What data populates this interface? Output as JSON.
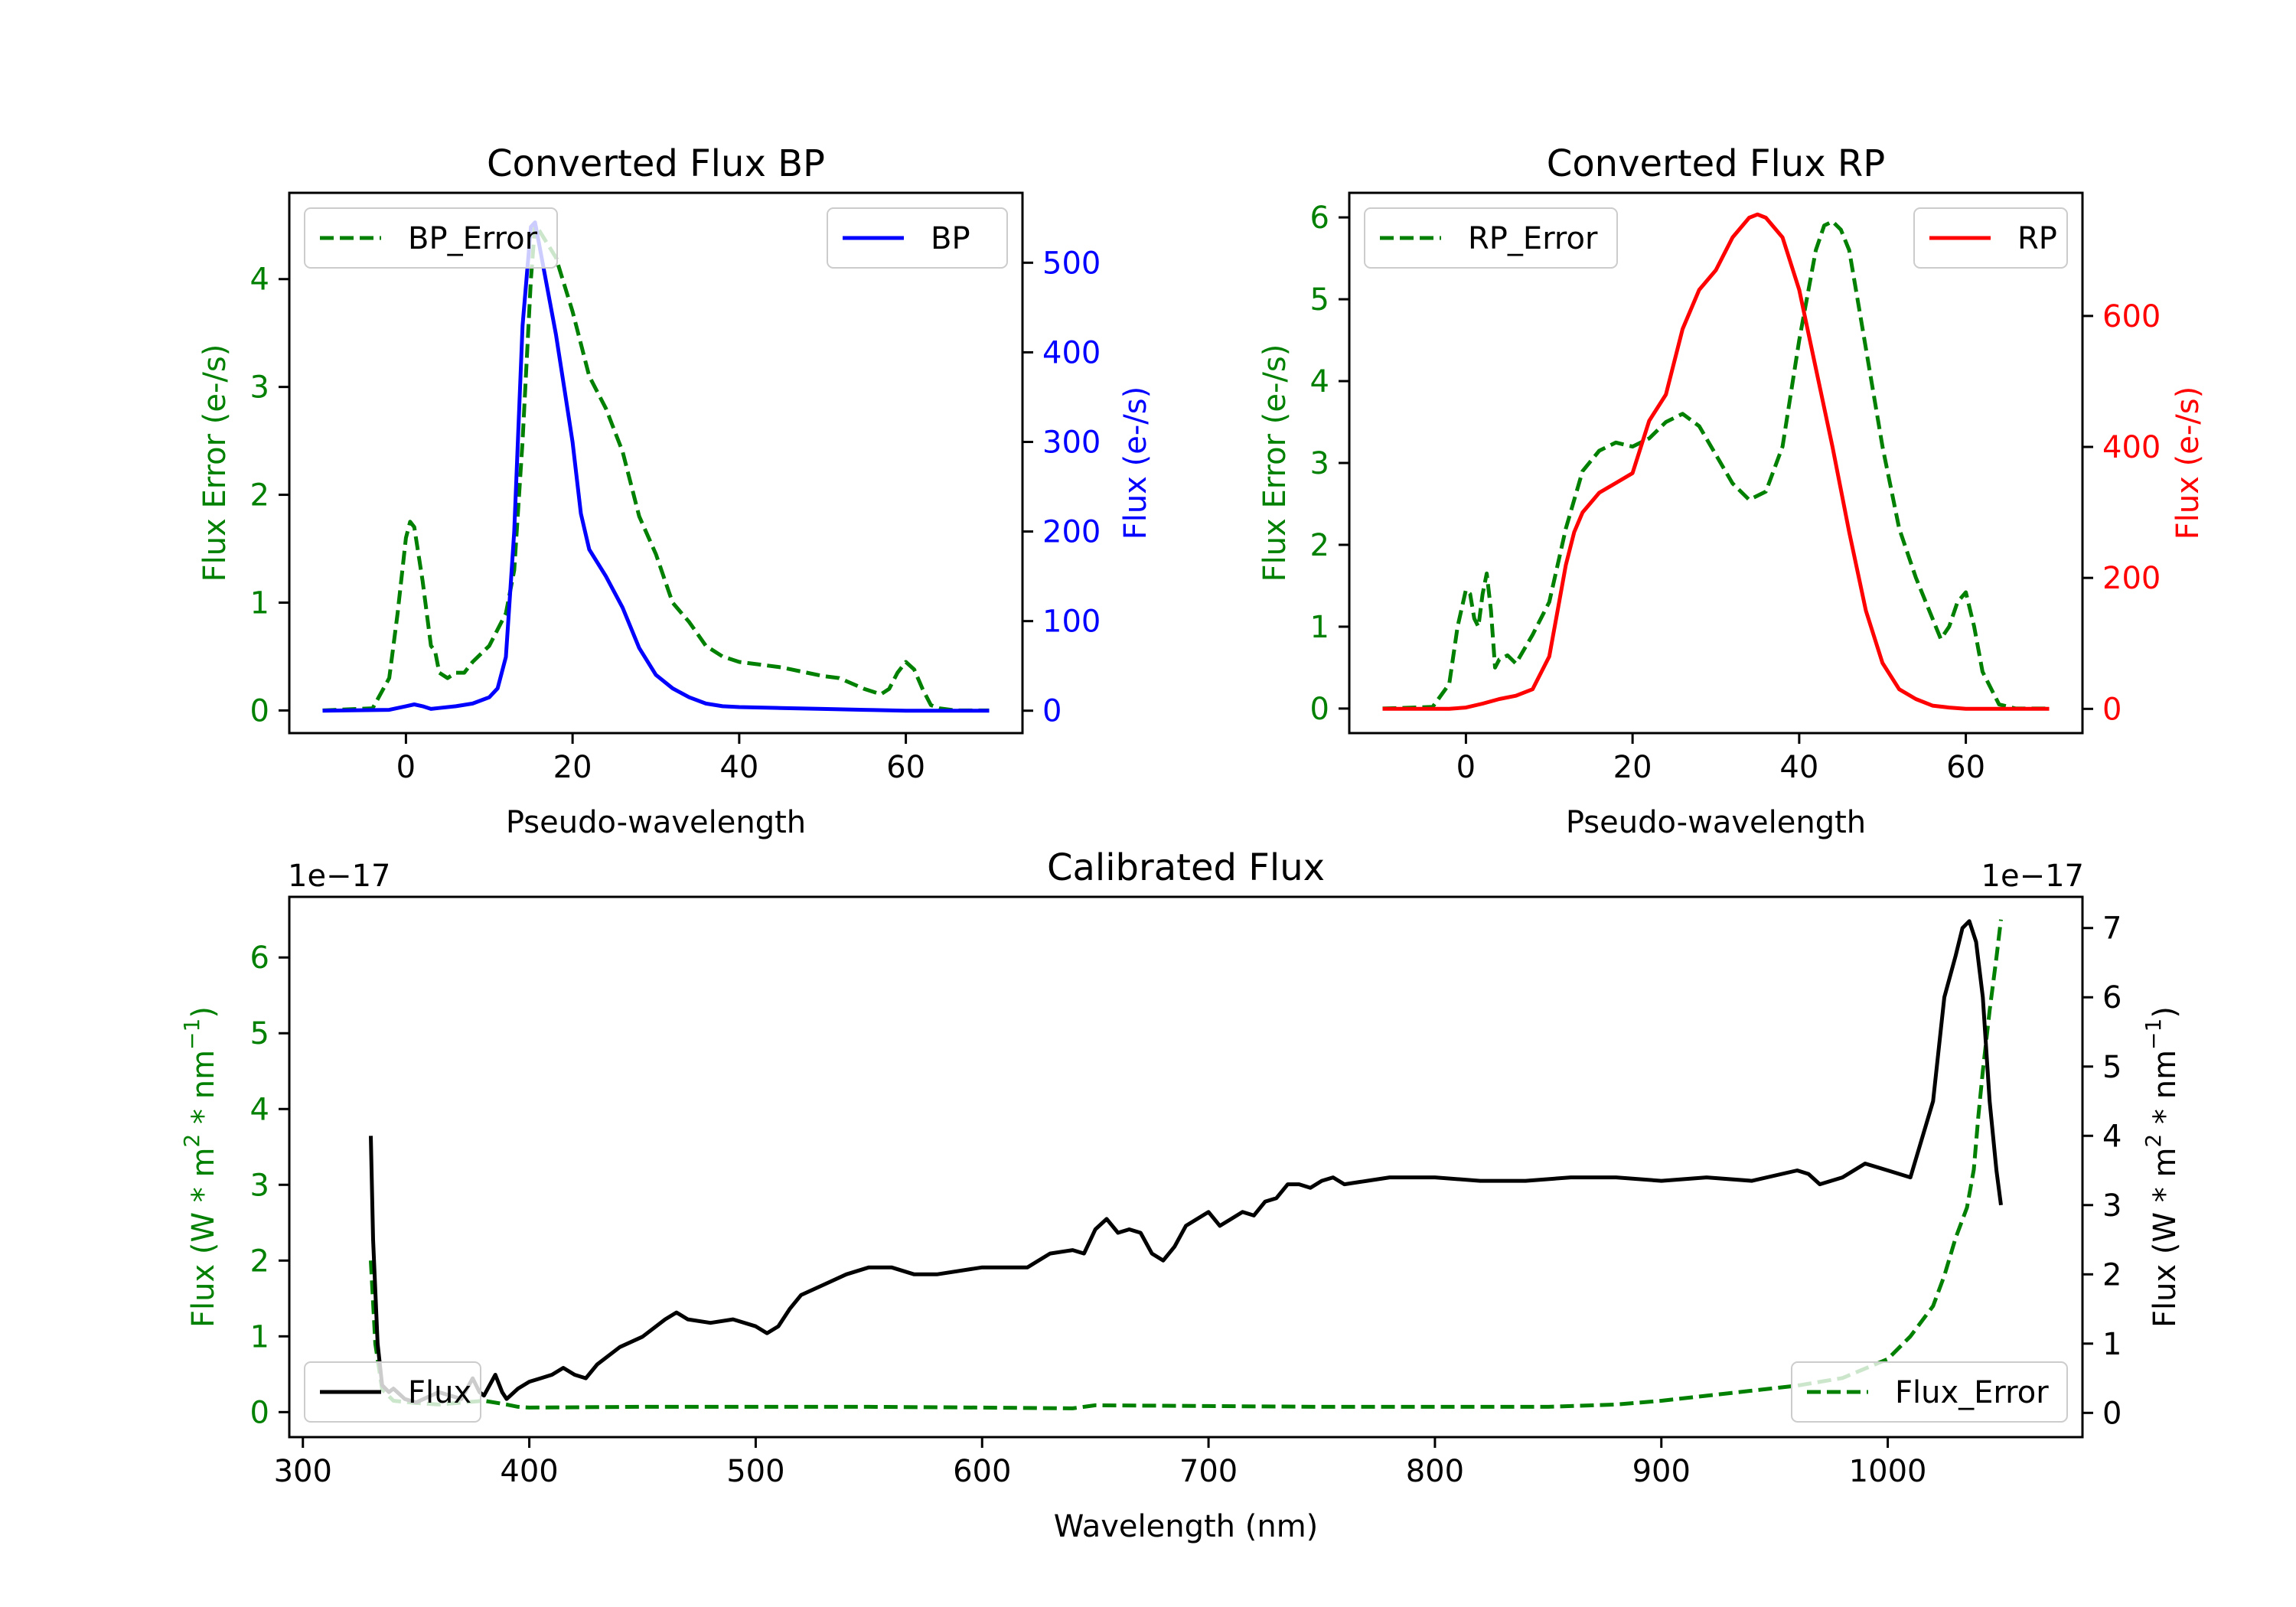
{
  "colors": {
    "green": "#008000",
    "blue": "#0000ff",
    "red": "#ff0000",
    "black": "#000000",
    "axis": "#000000",
    "background": "#ffffff"
  },
  "chart_data": [
    {
      "id": "bp",
      "type": "line",
      "title": "Converted Flux BP",
      "xlabel": "Pseudo-wavelength",
      "xlim": [
        -14,
        74
      ],
      "xticks": [
        0,
        20,
        40,
        60
      ],
      "left_axis": {
        "label": "Flux Error (e-/s)",
        "color": "#008000",
        "ylim": [
          -0.21,
          4.8
        ],
        "ticks": [
          0,
          1,
          2,
          3,
          4
        ]
      },
      "right_axis": {
        "label": "Flux (e-/s)",
        "color": "#0000ff",
        "ylim": [
          -25,
          578
        ],
        "ticks": [
          0,
          100,
          200,
          300,
          400,
          500
        ]
      },
      "series": [
        {
          "name": "BP_Error",
          "axis": "left",
          "color": "#008000",
          "dash": true,
          "x": [
            -10,
            -4,
            -2,
            -1,
            0,
            0.5,
            1,
            2,
            3,
            3.5,
            4,
            5,
            6,
            7,
            8,
            10,
            12,
            13,
            14,
            15,
            15.5,
            16,
            18,
            20,
            22,
            24,
            26,
            28,
            30,
            32,
            34,
            36,
            38,
            40,
            45,
            50,
            52,
            55,
            57,
            58,
            59,
            60,
            61,
            62,
            63,
            64,
            66,
            70
          ],
          "y": [
            0,
            0.02,
            0.3,
            0.9,
            1.6,
            1.75,
            1.7,
            1.2,
            0.6,
            0.55,
            0.35,
            0.3,
            0.35,
            0.35,
            0.45,
            0.6,
            0.9,
            1.3,
            2.5,
            4.0,
            4.5,
            4.45,
            4.2,
            3.7,
            3.1,
            2.8,
            2.4,
            1.8,
            1.45,
            1.0,
            0.82,
            0.6,
            0.5,
            0.45,
            0.4,
            0.32,
            0.3,
            0.2,
            0.15,
            0.2,
            0.35,
            0.45,
            0.38,
            0.2,
            0.05,
            0.02,
            0,
            0
          ]
        },
        {
          "name": "BP",
          "axis": "right",
          "color": "#0000ff",
          "dash": false,
          "x": [
            -10,
            -2,
            0,
            1,
            2,
            3,
            4,
            6,
            8,
            10,
            11,
            12,
            13,
            14,
            15,
            15.5,
            16,
            17,
            18,
            19,
            20,
            21,
            22,
            24,
            26,
            28,
            30,
            32,
            34,
            36,
            38,
            40,
            45,
            50,
            55,
            60,
            65,
            70
          ],
          "y": [
            0,
            1,
            5,
            7,
            5,
            2,
            3,
            5,
            8,
            15,
            25,
            60,
            200,
            430,
            540,
            545,
            520,
            470,
            420,
            360,
            300,
            220,
            180,
            150,
            115,
            70,
            40,
            25,
            15,
            8,
            5,
            4,
            3,
            2,
            1,
            0,
            0,
            0
          ]
        }
      ],
      "legend": [
        {
          "label": "BP_Error",
          "placement": "upper-left"
        },
        {
          "label": "BP",
          "placement": "upper-right"
        }
      ]
    },
    {
      "id": "rp",
      "type": "line",
      "title": "Converted Flux RP",
      "xlabel": "Pseudo-wavelength",
      "xlim": [
        -14,
        74
      ],
      "xticks": [
        0,
        20,
        40,
        60
      ],
      "left_axis": {
        "label": "Flux Error (e-/s)",
        "color": "#008000",
        "ylim": [
          -0.3,
          6.3
        ],
        "ticks": [
          0,
          1,
          2,
          3,
          4,
          5,
          6
        ]
      },
      "right_axis": {
        "label": "Flux (e-/s)",
        "color": "#ff0000",
        "ylim": [
          -37,
          788
        ],
        "ticks": [
          0,
          200,
          400,
          600
        ]
      },
      "series": [
        {
          "name": "RP_Error",
          "axis": "left",
          "color": "#008000",
          "dash": true,
          "x": [
            -10,
            -4,
            -2,
            -1,
            0,
            0.5,
            1,
            1.5,
            2,
            2.5,
            3,
            3.5,
            4,
            5,
            6,
            8,
            10,
            12,
            14,
            16,
            18,
            20,
            22,
            24,
            26,
            28,
            30,
            32,
            34,
            36,
            38,
            40,
            42,
            43,
            44,
            45,
            46,
            48,
            50,
            52,
            54,
            56,
            57,
            58,
            59,
            60,
            61,
            62,
            64,
            66,
            70
          ],
          "y": [
            0,
            0.02,
            0.3,
            1.0,
            1.45,
            1.4,
            1.1,
            1.0,
            1.4,
            1.65,
            1.2,
            0.5,
            0.6,
            0.65,
            0.55,
            0.9,
            1.3,
            2.2,
            2.9,
            3.15,
            3.25,
            3.2,
            3.3,
            3.5,
            3.6,
            3.45,
            3.1,
            2.75,
            2.55,
            2.65,
            3.2,
            4.5,
            5.6,
            5.9,
            5.95,
            5.85,
            5.6,
            4.4,
            3.2,
            2.2,
            1.6,
            1.1,
            0.85,
            1.0,
            1.3,
            1.42,
            1.0,
            0.45,
            0.05,
            0,
            0
          ]
        },
        {
          "name": "RP",
          "axis": "right",
          "color": "#ff0000",
          "dash": false,
          "x": [
            -10,
            -2,
            0,
            2,
            4,
            6,
            8,
            10,
            11,
            12,
            13,
            14,
            16,
            18,
            20,
            21,
            22,
            24,
            26,
            28,
            30,
            32,
            34,
            35,
            36,
            38,
            40,
            42,
            44,
            46,
            48,
            50,
            52,
            54,
            56,
            58,
            60,
            62,
            65,
            70
          ],
          "y": [
            0,
            0,
            2,
            8,
            15,
            20,
            30,
            80,
            150,
            220,
            270,
            300,
            330,
            345,
            360,
            400,
            440,
            480,
            580,
            640,
            670,
            720,
            750,
            755,
            750,
            720,
            640,
            520,
            400,
            270,
            150,
            70,
            30,
            15,
            5,
            2,
            0,
            0,
            0,
            0
          ]
        }
      ],
      "legend": [
        {
          "label": "RP_Error",
          "placement": "upper-left"
        },
        {
          "label": "RP",
          "placement": "upper-right"
        }
      ]
    },
    {
      "id": "cal",
      "type": "line",
      "title": "Calibrated Flux",
      "xlabel": "Wavelength (nm)",
      "xlim": [
        294,
        1086
      ],
      "xticks": [
        300,
        400,
        500,
        600,
        700,
        800,
        900,
        1000
      ],
      "left_axis": {
        "label": "Flux (W * m^2 * nm^-1)",
        "label_parts": [
          "Flux (W * m",
          "2",
          " * nm",
          "−1",
          ")"
        ],
        "color": "#008000",
        "offset_text": "1e−17",
        "ylim": [
          -0.33,
          6.8
        ],
        "ticks": [
          0,
          1,
          2,
          3,
          4,
          5,
          6
        ]
      },
      "right_axis": {
        "label": "Flux (W * m^2 * nm^-1)",
        "label_parts": [
          "Flux (W * m",
          "2",
          " * nm",
          "−1",
          ")"
        ],
        "color": "#000000",
        "offset_text": "1e−17",
        "ylim": [
          -0.35,
          7.45
        ],
        "ticks": [
          0,
          1,
          2,
          3,
          4,
          5,
          6,
          7
        ]
      },
      "series": [
        {
          "name": "Flux_Error",
          "axis": "left",
          "color": "#008000",
          "dash": true,
          "x": [
            330,
            332,
            335,
            340,
            350,
            360,
            380,
            390,
            395,
            400,
            450,
            500,
            550,
            600,
            640,
            650,
            700,
            750,
            800,
            850,
            880,
            900,
            930,
            960,
            980,
            1000,
            1010,
            1020,
            1025,
            1030,
            1035,
            1038,
            1040,
            1042,
            1045,
            1048,
            1050
          ],
          "y": [
            2.0,
            0.9,
            0.3,
            0.15,
            0.12,
            0.1,
            0.15,
            0.1,
            0.07,
            0.06,
            0.07,
            0.07,
            0.07,
            0.06,
            0.05,
            0.09,
            0.08,
            0.07,
            0.07,
            0.07,
            0.1,
            0.15,
            0.25,
            0.35,
            0.45,
            0.7,
            1.0,
            1.4,
            1.8,
            2.3,
            2.7,
            3.2,
            3.9,
            4.5,
            5.3,
            6.0,
            6.5
          ]
        },
        {
          "name": "Flux",
          "axis": "right",
          "color": "#000000",
          "dash": false,
          "x": [
            330,
            331,
            333,
            335,
            338,
            340,
            345,
            350,
            360,
            370,
            375,
            378,
            380,
            385,
            388,
            390,
            395,
            400,
            405,
            410,
            415,
            420,
            425,
            430,
            440,
            450,
            460,
            465,
            470,
            480,
            490,
            500,
            505,
            510,
            515,
            520,
            530,
            540,
            550,
            560,
            570,
            580,
            600,
            620,
            630,
            640,
            645,
            650,
            655,
            660,
            665,
            670,
            675,
            680,
            685,
            690,
            700,
            705,
            710,
            715,
            720,
            725,
            730,
            735,
            740,
            745,
            750,
            755,
            760,
            770,
            780,
            790,
            800,
            820,
            840,
            860,
            880,
            900,
            920,
            940,
            960,
            965,
            970,
            980,
            990,
            1000,
            1010,
            1020,
            1025,
            1030,
            1033,
            1036,
            1039,
            1042,
            1045,
            1048,
            1050
          ],
          "y": [
            4.0,
            2.5,
            1.0,
            0.4,
            0.3,
            0.35,
            0.2,
            0.15,
            0.3,
            0.2,
            0.5,
            0.3,
            0.25,
            0.55,
            0.3,
            0.2,
            0.35,
            0.45,
            0.5,
            0.55,
            0.65,
            0.55,
            0.5,
            0.7,
            0.95,
            1.1,
            1.35,
            1.45,
            1.35,
            1.3,
            1.35,
            1.25,
            1.15,
            1.25,
            1.5,
            1.7,
            1.85,
            2.0,
            2.1,
            2.1,
            2.0,
            2.0,
            2.1,
            2.1,
            2.3,
            2.35,
            2.3,
            2.65,
            2.8,
            2.6,
            2.65,
            2.6,
            2.3,
            2.2,
            2.4,
            2.7,
            2.9,
            2.7,
            2.8,
            2.9,
            2.85,
            3.05,
            3.1,
            3.3,
            3.3,
            3.25,
            3.35,
            3.4,
            3.3,
            3.35,
            3.4,
            3.4,
            3.4,
            3.35,
            3.35,
            3.4,
            3.4,
            3.35,
            3.4,
            3.35,
            3.5,
            3.45,
            3.3,
            3.4,
            3.6,
            3.5,
            3.4,
            4.5,
            6.0,
            6.6,
            7.0,
            7.1,
            6.8,
            6.0,
            4.5,
            3.5,
            3.0
          ]
        }
      ],
      "legend": [
        {
          "label": "Flux",
          "placement": "lower-left"
        },
        {
          "label": "Flux_Error",
          "placement": "lower-right"
        }
      ]
    }
  ]
}
